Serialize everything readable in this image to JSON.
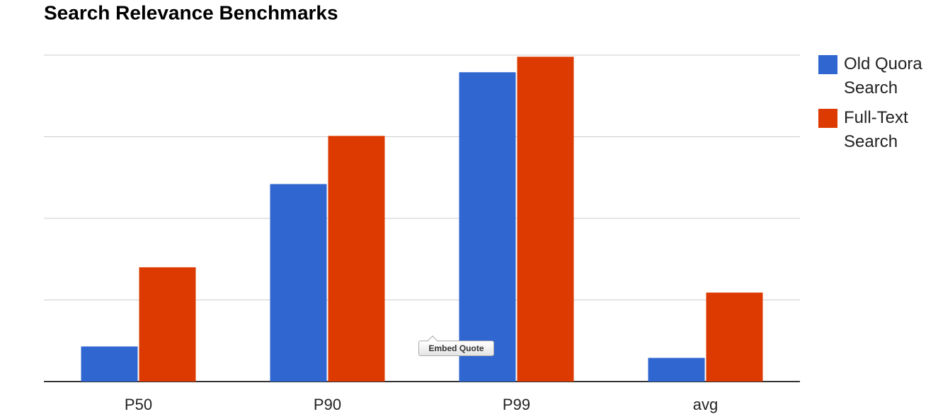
{
  "chart_data": {
    "type": "bar",
    "title": "Search Relevance Benchmarks",
    "categories": [
      "P50",
      "P90",
      "P99",
      "avg"
    ],
    "series": [
      {
        "name": "Old Quora Search",
        "color": "#3066d0",
        "values": [
          0.43,
          2.42,
          3.79,
          0.29
        ]
      },
      {
        "name": "Full-Text Search",
        "color": "#dc3a00",
        "values": [
          1.4,
          3.01,
          3.98,
          1.09
        ]
      }
    ],
    "ylim": [
      0,
      4
    ],
    "yticks": [
      0,
      1,
      2,
      3,
      4
    ],
    "grid": true,
    "legend": "right"
  },
  "overlay": {
    "button": "Embed Quote"
  }
}
